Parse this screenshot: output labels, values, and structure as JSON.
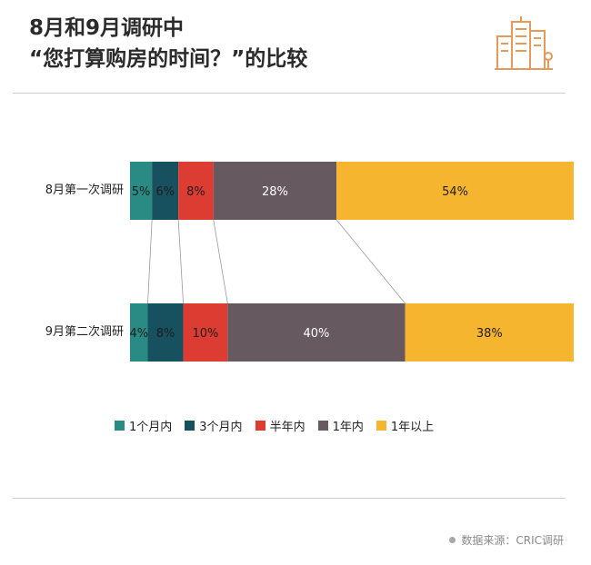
{
  "title": {
    "line1": "8月和9月调研中",
    "line2": "“您打算购房的时间？”的比较"
  },
  "source": "数据来源：CRIC调研",
  "chart_data": {
    "type": "bar",
    "orientation": "horizontal",
    "stacked": true,
    "categories": [
      "8月第一次调研",
      "9月第二次调研"
    ],
    "series": [
      {
        "name": "1个月内",
        "values": [
          5,
          4
        ],
        "color": "#2a8a84"
      },
      {
        "name": "3个月内",
        "values": [
          6,
          8
        ],
        "color": "#17505f"
      },
      {
        "name": "半年内",
        "values": [
          8,
          10
        ],
        "color": "#dc3c32"
      },
      {
        "name": "1年内",
        "values": [
          28,
          40
        ],
        "color": "#675960"
      },
      {
        "name": "1年以上",
        "values": [
          54,
          38
        ],
        "color": "#f6b52e"
      }
    ],
    "value_suffix": "%",
    "legend_position": "bottom",
    "grid": false
  }
}
